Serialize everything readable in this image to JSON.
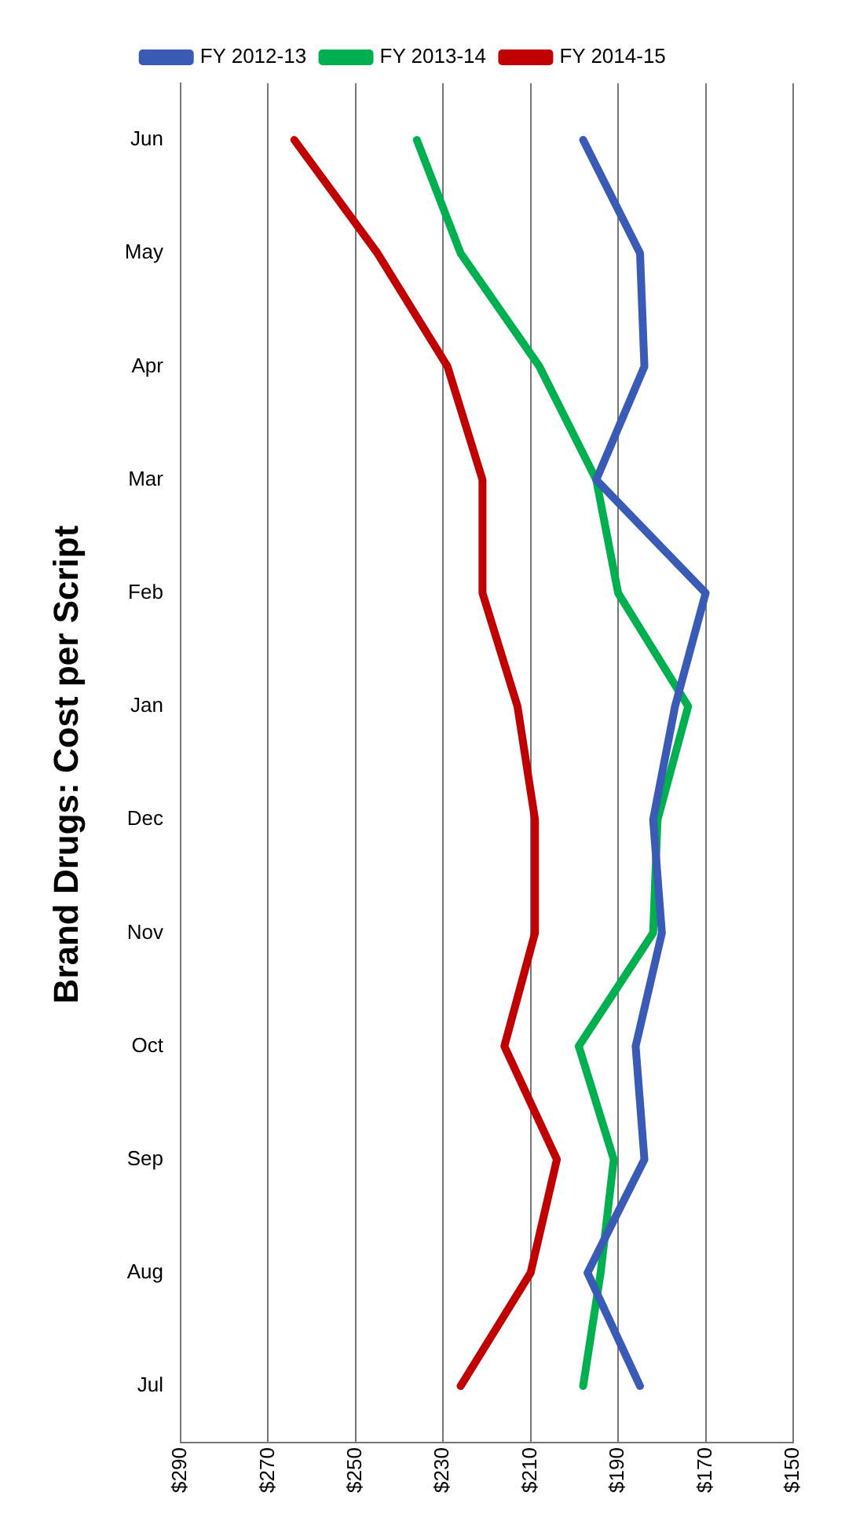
{
  "chart_data": {
    "type": "line",
    "title": "Brand Drugs: Cost per Script",
    "orientation": "horizontal",
    "categories": [
      "Jun",
      "May",
      "Apr",
      "Mar",
      "Feb",
      "Jan",
      "Dec",
      "Nov",
      "Oct",
      "Sep",
      "Aug",
      "Jul"
    ],
    "series": [
      {
        "name": "FY 2012-13",
        "color": "#3a5bb5",
        "values": [
          198,
          185,
          184,
          195,
          170,
          177,
          182,
          180,
          186,
          184,
          197,
          185
        ]
      },
      {
        "name": "FY 2013-14",
        "color": "#00b050",
        "values": [
          236,
          226,
          208,
          195,
          190,
          174,
          181,
          182,
          199,
          191,
          194,
          198
        ]
      },
      {
        "name": "FY 2014-15",
        "color": "#c00000",
        "values": [
          264,
          245,
          229,
          221,
          221,
          213,
          209,
          209,
          216,
          204,
          210,
          226
        ]
      }
    ],
    "xlim": [
      290,
      150
    ],
    "xticks": [
      {
        "value": 290,
        "label": "$290"
      },
      {
        "value": 270,
        "label": "$270"
      },
      {
        "value": 250,
        "label": "$250"
      },
      {
        "value": 230,
        "label": "$230"
      },
      {
        "value": 210,
        "label": "$210"
      },
      {
        "value": 190,
        "label": "$190"
      },
      {
        "value": 170,
        "label": "$170"
      },
      {
        "value": 150,
        "label": "$150"
      }
    ],
    "grid": "x",
    "legend": "top",
    "marker": "none",
    "line_style": "solid"
  }
}
